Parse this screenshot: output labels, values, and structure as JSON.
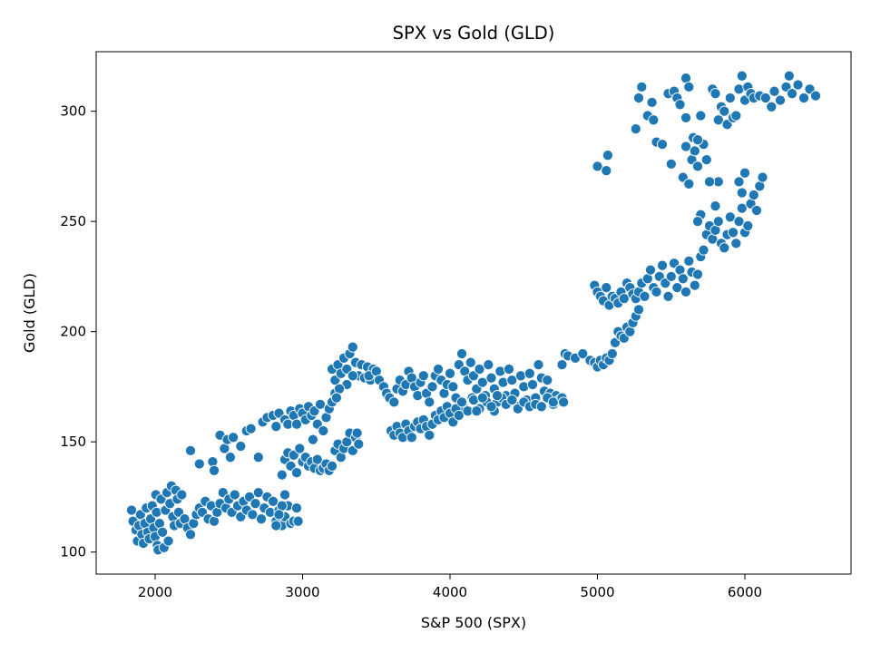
{
  "chart_data": {
    "type": "scatter",
    "title": "SPX vs Gold (GLD)",
    "xlabel": "S&P 500 (SPX)",
    "ylabel": "Gold (GLD)",
    "xlim": [
      1600,
      6720
    ],
    "ylim": [
      90,
      327
    ],
    "xticks": [
      2000,
      3000,
      4000,
      5000,
      6000
    ],
    "yticks": [
      100,
      150,
      200,
      250,
      300
    ],
    "grid": false,
    "legend": "none",
    "marker_color": "#1f77b4",
    "points": [
      [
        1840,
        119
      ],
      [
        1850,
        114
      ],
      [
        1870,
        110
      ],
      [
        1880,
        105
      ],
      [
        1890,
        112
      ],
      [
        1900,
        117
      ],
      [
        1910,
        108
      ],
      [
        1920,
        104
      ],
      [
        1930,
        113
      ],
      [
        1940,
        120
      ],
      [
        1950,
        109
      ],
      [
        1960,
        106
      ],
      [
        1970,
        115
      ],
      [
        1980,
        121
      ],
      [
        1990,
        111
      ],
      [
        2000,
        107
      ],
      [
        2005,
        126
      ],
      [
        2010,
        118
      ],
      [
        2015,
        103
      ],
      [
        2020,
        101
      ],
      [
        2030,
        113
      ],
      [
        2040,
        124
      ],
      [
        2050,
        109
      ],
      [
        2060,
        102
      ],
      [
        2070,
        119
      ],
      [
        2080,
        127
      ],
      [
        2090,
        105
      ],
      [
        2100,
        122
      ],
      [
        2110,
        130
      ],
      [
        2120,
        116
      ],
      [
        2130,
        112
      ],
      [
        2140,
        128
      ],
      [
        2150,
        124
      ],
      [
        2160,
        118
      ],
      [
        2170,
        113
      ],
      [
        2180,
        126
      ],
      [
        2200,
        115
      ],
      [
        2220,
        111
      ],
      [
        2240,
        108
      ],
      [
        2260,
        113
      ],
      [
        2280,
        117
      ],
      [
        2300,
        120
      ],
      [
        2320,
        118
      ],
      [
        2340,
        123
      ],
      [
        2360,
        115
      ],
      [
        2380,
        121
      ],
      [
        2400,
        114
      ],
      [
        2420,
        118
      ],
      [
        2440,
        122
      ],
      [
        2460,
        127
      ],
      [
        2480,
        120
      ],
      [
        2500,
        124
      ],
      [
        2520,
        118
      ],
      [
        2540,
        126
      ],
      [
        2560,
        121
      ],
      [
        2580,
        116
      ],
      [
        2600,
        123
      ],
      [
        2620,
        119
      ],
      [
        2640,
        125
      ],
      [
        2660,
        117
      ],
      [
        2680,
        122
      ],
      [
        2700,
        127
      ],
      [
        2720,
        115
      ],
      [
        2740,
        120
      ],
      [
        2760,
        125
      ],
      [
        2780,
        118
      ],
      [
        2800,
        123
      ],
      [
        2820,
        114
      ],
      [
        2840,
        119
      ],
      [
        2860,
        112
      ],
      [
        2880,
        116
      ],
      [
        2900,
        121
      ],
      [
        2920,
        113
      ],
      [
        2940,
        114
      ],
      [
        2880,
        126
      ],
      [
        2860,
        121
      ],
      [
        2840,
        117
      ],
      [
        2820,
        112
      ],
      [
        2960,
        120
      ],
      [
        2970,
        114
      ],
      [
        2240,
        146
      ],
      [
        2300,
        140
      ],
      [
        2390,
        141
      ],
      [
        2400,
        137
      ],
      [
        2440,
        153
      ],
      [
        2470,
        147
      ],
      [
        2490,
        151
      ],
      [
        2510,
        143
      ],
      [
        2530,
        152
      ],
      [
        2580,
        148
      ],
      [
        2620,
        155
      ],
      [
        2650,
        156
      ],
      [
        2700,
        143
      ],
      [
        2730,
        159
      ],
      [
        2760,
        161
      ],
      [
        2800,
        162
      ],
      [
        2820,
        157
      ],
      [
        2840,
        163
      ],
      [
        2880,
        160
      ],
      [
        2900,
        158
      ],
      [
        2920,
        164
      ],
      [
        2940,
        162
      ],
      [
        2960,
        158
      ],
      [
        2980,
        165
      ],
      [
        3000,
        163
      ],
      [
        3020,
        160
      ],
      [
        3040,
        166
      ],
      [
        3060,
        162
      ],
      [
        3080,
        164
      ],
      [
        3100,
        158
      ],
      [
        3120,
        167
      ],
      [
        3140,
        155
      ],
      [
        3160,
        161
      ],
      [
        3180,
        165
      ],
      [
        3200,
        168
      ],
      [
        3220,
        172
      ],
      [
        2860,
        135
      ],
      [
        2880,
        142
      ],
      [
        2900,
        145
      ],
      [
        2920,
        139
      ],
      [
        2940,
        144
      ],
      [
        2960,
        136
      ],
      [
        2980,
        147
      ],
      [
        3000,
        141
      ],
      [
        3020,
        143
      ],
      [
        3040,
        139
      ],
      [
        3060,
        141
      ],
      [
        3080,
        138
      ],
      [
        3100,
        142
      ],
      [
        3120,
        137
      ],
      [
        3140,
        138
      ],
      [
        3160,
        140
      ],
      [
        3180,
        137
      ],
      [
        3200,
        139
      ],
      [
        3220,
        146
      ],
      [
        3240,
        149
      ],
      [
        3260,
        143
      ],
      [
        3280,
        147
      ],
      [
        3300,
        150
      ],
      [
        3320,
        154
      ],
      [
        3340,
        146
      ],
      [
        3360,
        152
      ],
      [
        3380,
        149
      ],
      [
        3370,
        154
      ],
      [
        3070,
        151
      ],
      [
        3200,
        183
      ],
      [
        3220,
        178
      ],
      [
        3240,
        185
      ],
      [
        3260,
        181
      ],
      [
        3280,
        188
      ],
      [
        3300,
        183
      ],
      [
        3320,
        190
      ],
      [
        3340,
        193
      ],
      [
        3360,
        186
      ],
      [
        3380,
        180
      ],
      [
        3400,
        185
      ],
      [
        3420,
        179
      ],
      [
        3440,
        184
      ],
      [
        3460,
        178
      ],
      [
        3480,
        183
      ],
      [
        3340,
        180
      ],
      [
        3300,
        176
      ],
      [
        3250,
        174
      ],
      [
        3230,
        170
      ],
      [
        3450,
        180
      ],
      [
        3500,
        182
      ],
      [
        3520,
        178
      ],
      [
        3550,
        175
      ],
      [
        3570,
        172
      ],
      [
        3590,
        170
      ],
      [
        3620,
        168
      ],
      [
        3640,
        174
      ],
      [
        3660,
        178
      ],
      [
        3680,
        173
      ],
      [
        3700,
        176
      ],
      [
        3720,
        182
      ],
      [
        3740,
        179
      ],
      [
        3760,
        175
      ],
      [
        3780,
        171
      ],
      [
        3800,
        177
      ],
      [
        3820,
        180
      ],
      [
        3840,
        172
      ],
      [
        3860,
        168
      ],
      [
        3880,
        175
      ],
      [
        3900,
        180
      ],
      [
        3920,
        183
      ],
      [
        3940,
        178
      ],
      [
        3960,
        172
      ],
      [
        3980,
        176
      ],
      [
        4000,
        181
      ],
      [
        4020,
        175
      ],
      [
        4040,
        170
      ],
      [
        4060,
        185
      ],
      [
        4080,
        190
      ],
      [
        4100,
        182
      ],
      [
        4120,
        178
      ],
      [
        4140,
        186
      ],
      [
        4160,
        180
      ],
      [
        4180,
        174
      ],
      [
        4200,
        183
      ],
      [
        4220,
        177
      ],
      [
        4240,
        171
      ],
      [
        4260,
        185
      ],
      [
        4280,
        179
      ],
      [
        4300,
        174
      ],
      [
        4320,
        168
      ],
      [
        4340,
        182
      ],
      [
        4360,
        177
      ],
      [
        4380,
        171
      ],
      [
        4400,
        183
      ],
      [
        4420,
        178
      ],
      [
        4440,
        172
      ],
      [
        4460,
        166
      ],
      [
        4480,
        180
      ],
      [
        4500,
        175
      ],
      [
        4520,
        169
      ],
      [
        4540,
        181
      ],
      [
        4560,
        176
      ],
      [
        4580,
        170
      ],
      [
        4600,
        185
      ],
      [
        4620,
        179
      ],
      [
        4640,
        173
      ],
      [
        4660,
        178
      ],
      [
        4680,
        172
      ],
      [
        4700,
        167
      ],
      [
        4720,
        171
      ],
      [
        4740,
        169
      ],
      [
        4760,
        185
      ],
      [
        4780,
        190
      ],
      [
        4100,
        165
      ],
      [
        4150,
        170
      ],
      [
        4200,
        165
      ],
      [
        4250,
        168
      ],
      [
        4300,
        164
      ],
      [
        4350,
        170
      ],
      [
        3600,
        155
      ],
      [
        3620,
        153
      ],
      [
        3640,
        157
      ],
      [
        3660,
        154
      ],
      [
        3680,
        152
      ],
      [
        3700,
        158
      ],
      [
        3720,
        155
      ],
      [
        3740,
        152
      ],
      [
        3760,
        157
      ],
      [
        3780,
        159
      ],
      [
        3800,
        156
      ],
      [
        3820,
        160
      ],
      [
        3840,
        157
      ],
      [
        3860,
        153
      ],
      [
        3880,
        158
      ],
      [
        3900,
        162
      ],
      [
        3920,
        160
      ],
      [
        3940,
        164
      ],
      [
        3960,
        161
      ],
      [
        3980,
        166
      ],
      [
        4000,
        163
      ],
      [
        4020,
        159
      ],
      [
        4040,
        165
      ],
      [
        4060,
        162
      ],
      [
        4080,
        168
      ],
      [
        4120,
        164
      ],
      [
        4160,
        169
      ],
      [
        4180,
        164
      ],
      [
        4220,
        170
      ],
      [
        4280,
        166
      ],
      [
        4320,
        171
      ],
      [
        4380,
        167
      ],
      [
        4420,
        169
      ],
      [
        4460,
        165
      ],
      [
        4500,
        168
      ],
      [
        4540,
        166
      ],
      [
        4580,
        167
      ],
      [
        4620,
        166
      ],
      [
        4660,
        170
      ],
      [
        4700,
        168
      ],
      [
        4760,
        170
      ],
      [
        4770,
        168
      ],
      [
        4800,
        189
      ],
      [
        4850,
        188
      ],
      [
        4900,
        190
      ],
      [
        4950,
        187
      ],
      [
        4980,
        186
      ],
      [
        5000,
        184
      ],
      [
        5020,
        187
      ],
      [
        5040,
        185
      ],
      [
        5060,
        188
      ],
      [
        5080,
        187
      ],
      [
        5100,
        190
      ],
      [
        5120,
        195
      ],
      [
        5140,
        200
      ],
      [
        5160,
        198
      ],
      [
        5180,
        197
      ],
      [
        5200,
        202
      ],
      [
        5220,
        200
      ],
      [
        5240,
        204
      ],
      [
        5260,
        207
      ],
      [
        5280,
        210
      ],
      [
        4980,
        221
      ],
      [
        5000,
        218
      ],
      [
        5020,
        216
      ],
      [
        5040,
        214
      ],
      [
        5060,
        220
      ],
      [
        5080,
        212
      ],
      [
        5100,
        216
      ],
      [
        5120,
        215
      ],
      [
        5140,
        213
      ],
      [
        5160,
        218
      ],
      [
        5180,
        215
      ],
      [
        5200,
        222
      ],
      [
        5220,
        220
      ],
      [
        5240,
        217
      ],
      [
        5260,
        215
      ],
      [
        5280,
        218
      ],
      [
        5300,
        222
      ],
      [
        5320,
        216
      ],
      [
        5340,
        224
      ],
      [
        5360,
        228
      ],
      [
        5380,
        220
      ],
      [
        5400,
        218
      ],
      [
        5420,
        225
      ],
      [
        5440,
        230
      ],
      [
        5460,
        222
      ],
      [
        5480,
        216
      ],
      [
        5500,
        225
      ],
      [
        5520,
        231
      ],
      [
        5540,
        220
      ],
      [
        5560,
        228
      ],
      [
        5580,
        224
      ],
      [
        5600,
        218
      ],
      [
        5620,
        232
      ],
      [
        5640,
        227
      ],
      [
        5660,
        221
      ],
      [
        5680,
        226
      ],
      [
        5700,
        234
      ],
      [
        5720,
        237
      ],
      [
        5740,
        244
      ],
      [
        5760,
        248
      ],
      [
        5780,
        242
      ],
      [
        5800,
        246
      ],
      [
        5820,
        250
      ],
      [
        5840,
        240
      ],
      [
        5860,
        238
      ],
      [
        5880,
        244
      ],
      [
        5900,
        252
      ],
      [
        5920,
        245
      ],
      [
        5940,
        240
      ],
      [
        5960,
        250
      ],
      [
        5980,
        256
      ],
      [
        6000,
        245
      ],
      [
        6020,
        248
      ],
      [
        6040,
        258
      ],
      [
        6060,
        262
      ],
      [
        6080,
        255
      ],
      [
        6100,
        266
      ],
      [
        6120,
        270
      ],
      [
        5800,
        257
      ],
      [
        5820,
        268
      ],
      [
        5700,
        253
      ],
      [
        5680,
        250
      ],
      [
        5980,
        263
      ],
      [
        6000,
        272
      ],
      [
        5960,
        268
      ],
      [
        5000,
        275
      ],
      [
        5070,
        280
      ],
      [
        5060,
        273
      ],
      [
        5260,
        292
      ],
      [
        5280,
        306
      ],
      [
        5300,
        311
      ],
      [
        5340,
        298
      ],
      [
        5370,
        304
      ],
      [
        5380,
        296
      ],
      [
        5400,
        286
      ],
      [
        5440,
        285
      ],
      [
        5480,
        308
      ],
      [
        5500,
        276
      ],
      [
        5520,
        309
      ],
      [
        5540,
        306
      ],
      [
        5560,
        303
      ],
      [
        5580,
        270
      ],
      [
        5600,
        284
      ],
      [
        5620,
        267
      ],
      [
        5640,
        278
      ],
      [
        5660,
        282
      ],
      [
        5680,
        275
      ],
      [
        5700,
        298
      ],
      [
        5720,
        285
      ],
      [
        5740,
        278
      ],
      [
        5760,
        268
      ],
      [
        5780,
        310
      ],
      [
        5800,
        308
      ],
      [
        5820,
        296
      ],
      [
        5840,
        302
      ],
      [
        5860,
        300
      ],
      [
        5880,
        294
      ],
      [
        5900,
        306
      ],
      [
        5920,
        297
      ],
      [
        5940,
        298
      ],
      [
        5960,
        310
      ],
      [
        5980,
        316
      ],
      [
        6000,
        305
      ],
      [
        6020,
        311
      ],
      [
        6040,
        308
      ],
      [
        6060,
        306
      ],
      [
        6100,
        307
      ],
      [
        6140,
        306
      ],
      [
        6180,
        302
      ],
      [
        6200,
        309
      ],
      [
        6240,
        305
      ],
      [
        6280,
        311
      ],
      [
        6300,
        316
      ],
      [
        6320,
        308
      ],
      [
        6360,
        312
      ],
      [
        6400,
        306
      ],
      [
        6440,
        310
      ],
      [
        6480,
        307
      ],
      [
        5600,
        315
      ],
      [
        5620,
        311
      ],
      [
        5650,
        288
      ],
      [
        5680,
        287
      ],
      [
        5600,
        297
      ]
    ]
  }
}
